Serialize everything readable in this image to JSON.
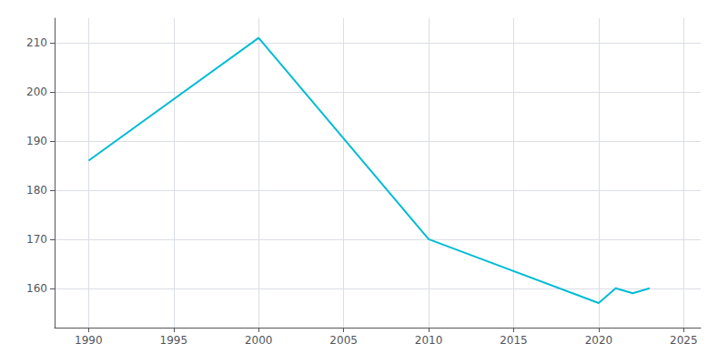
{
  "chart_data": {
    "type": "line",
    "x": [
      1990,
      2000,
      2010,
      2020,
      2021,
      2022,
      2023
    ],
    "values": [
      186,
      211,
      170,
      157,
      160,
      159,
      160
    ],
    "color": "#00bcd4",
    "xlim": [
      1988,
      2026
    ],
    "xticks": [
      1990,
      1995,
      2000,
      2005,
      2010,
      2015,
      2020,
      2025
    ],
    "ylim": [
      152,
      215
    ],
    "yticks": [
      160,
      170,
      180,
      190,
      200,
      210
    ],
    "grid": true
  }
}
